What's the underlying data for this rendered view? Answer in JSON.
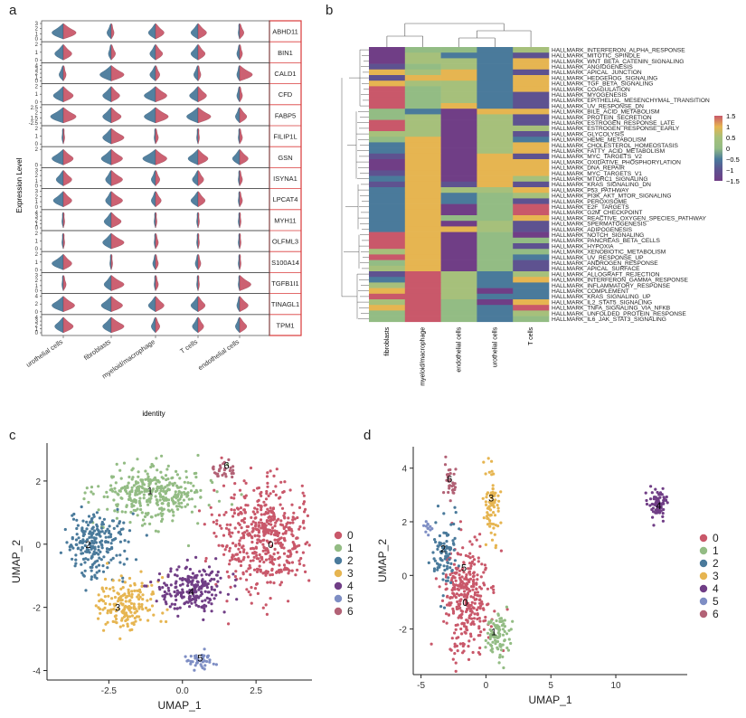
{
  "figure": {
    "panel_letters": [
      "a",
      "b",
      "c",
      "d"
    ]
  },
  "chart_data": [
    {
      "type": "violin",
      "panel": "a",
      "title": "",
      "xlabel": "identity",
      "ylabel": "Expression Level",
      "categories": [
        "urothelial cells",
        "fibroblasts",
        "myeloid/macrophage",
        "T cells",
        "endothelial cells"
      ],
      "genes": [
        {
          "name": "ABHD11",
          "ticks": [
            "3",
            "2",
            "1",
            "0"
          ],
          "blue": [
            0.8,
            0.3,
            0.5,
            0.5,
            0.1
          ],
          "red": [
            0.9,
            0.2,
            0.6,
            0.6,
            0.3
          ]
        },
        {
          "name": "BIN1",
          "ticks": [
            "2",
            "1",
            "0"
          ],
          "blue": [
            0.6,
            0.2,
            0.4,
            0.5,
            0.2
          ],
          "red": [
            0.6,
            0.3,
            0.5,
            0.5,
            0.2
          ]
        },
        {
          "name": "CALD1",
          "ticks": [
            "4",
            "3",
            "2",
            "1",
            "0"
          ],
          "blue": [
            0.3,
            0.8,
            0.4,
            0.3,
            0.2
          ],
          "red": [
            0.2,
            0.9,
            0.3,
            0.2,
            0.9
          ]
        },
        {
          "name": "CFD",
          "ticks": [
            "2",
            "1",
            "0"
          ],
          "blue": [
            0.7,
            0.6,
            0.8,
            0.6,
            0.2
          ],
          "red": [
            0.7,
            0.6,
            0.8,
            0.6,
            0.2
          ]
        },
        {
          "name": "FABP5",
          "ticks": [
            "2.5",
            "2",
            "1.5",
            "-2.5"
          ],
          "blue": [
            0.9,
            0.6,
            0.8,
            0.8,
            0.3
          ],
          "red": [
            0.9,
            0.7,
            0.9,
            0.9,
            0.5
          ]
        },
        {
          "name": "FILIP1L",
          "ticks": [
            "2",
            "1",
            "0"
          ],
          "blue": [
            0.1,
            0.6,
            0.1,
            0.1,
            0.1
          ],
          "red": [
            0.1,
            0.9,
            0.2,
            0.1,
            0.2
          ]
        },
        {
          "name": "GSN",
          "ticks": [
            "2",
            "0"
          ],
          "blue": [
            0.8,
            0.7,
            0.9,
            0.7,
            0.5
          ],
          "red": [
            0.7,
            0.8,
            0.8,
            0.7,
            0.6
          ]
        },
        {
          "name": "ISYNA1",
          "ticks": [
            "3",
            "2",
            "1",
            "0"
          ],
          "blue": [
            0.5,
            0.4,
            0.3,
            0.4,
            0.1
          ],
          "red": [
            0.6,
            0.8,
            0.3,
            0.4,
            0.2
          ]
        },
        {
          "name": "LPCAT4",
          "ticks": [
            "3",
            "2",
            "1",
            "0"
          ],
          "blue": [
            0.7,
            0.4,
            0.3,
            0.5,
            0.1
          ],
          "red": [
            0.6,
            0.8,
            0.4,
            0.5,
            0.2
          ]
        },
        {
          "name": "MYH11",
          "ticks": [
            "4",
            "3",
            "2",
            "1",
            "0"
          ],
          "blue": [
            0.1,
            0.5,
            0.1,
            0.1,
            0.1
          ],
          "red": [
            0.1,
            0.7,
            0.1,
            0.1,
            0.1
          ]
        },
        {
          "name": "OLFML3",
          "ticks": [
            "2",
            "1",
            "0"
          ],
          "blue": [
            0.1,
            0.6,
            0.1,
            0.1,
            0.1
          ],
          "red": [
            0.1,
            0.9,
            0.2,
            0.1,
            0.1
          ]
        },
        {
          "name": "S100A14",
          "ticks": [
            "2",
            "1",
            "0"
          ],
          "blue": [
            0.8,
            0.1,
            0.2,
            0.2,
            0.1
          ],
          "red": [
            0.6,
            0.1,
            0.2,
            0.2,
            0.1
          ]
        },
        {
          "name": "TGFB1I1",
          "ticks": [
            "3",
            "2",
            "1",
            "0"
          ],
          "blue": [
            0.1,
            0.5,
            0.1,
            0.1,
            0.1
          ],
          "red": [
            0.2,
            0.9,
            0.2,
            0.1,
            0.8
          ]
        },
        {
          "name": "TINAGL1",
          "ticks": [
            "4",
            "2",
            "0"
          ],
          "blue": [
            0.8,
            0.7,
            0.5,
            0.5,
            0.2
          ],
          "red": [
            0.8,
            0.8,
            0.6,
            0.5,
            0.6
          ]
        },
        {
          "name": "TPM1",
          "ticks": [
            "4",
            "3",
            "2",
            "1",
            "0"
          ],
          "blue": [
            0.6,
            0.6,
            0.3,
            0.4,
            0.3
          ],
          "red": [
            0.7,
            0.9,
            0.3,
            0.4,
            0.5
          ]
        }
      ],
      "series_colors": {
        "blue": "#4A7A9B",
        "red": "#C9586A"
      }
    },
    {
      "type": "heatmap",
      "panel": "b",
      "columns": [
        "fibroblasts",
        "myeloid/macrophage",
        "endothelial cells",
        "urothelial cells",
        "T cells"
      ],
      "rows": [
        "HALLMARK_INTERFERON_ALPHA_RESPONSE",
        "HALLMARK_MITOTIC_SPINDLE",
        "HALLMARK_WNT_BETA_CATENIN_SIGNALING",
        "HALLMARK_ANGIOGENESIS",
        "HALLMARK_APICAL_JUNCTION",
        "HALLMARK_HEDGEHOG_SIGNALING",
        "HALLMARK_TGF_BETA_SIGNALING",
        "HALLMARK_COAGULATION",
        "HALLMARK_MYOGENESIS",
        "HALLMARK_EPITHELIAL_MESENCHYMAL_TRANSITION",
        "HALLMARK_UV_RESPONSE_DN",
        "HALLMARK_BILE_ACID_METABOLISM",
        "HALLMARK_PROTEIN_SECRETION",
        "HALLMARK_ESTROGEN_RESPONSE_LATE",
        "HALLMARK_ESTROGEN_RESPONSE_EARLY",
        "HALLMARK_GLYCOLYSIS",
        "HALLMARK_HEME_METABOLISM",
        "HALLMARK_CHOLESTEROL_HOMEOSTASIS",
        "HALLMARK_FATTY_ACID_METABOLISM",
        "HALLMARK_MYC_TARGETS_V2",
        "HALLMARK_OXIDATIVE_PHOSPHORYLATION",
        "HALLMARK_DNA_REPAIR",
        "HALLMARK_MYC_TARGETS_V1",
        "HALLMARK_MTORC1_SIGNALING",
        "HALLMARK_KRAS_SIGNALING_DN",
        "HALLMARK_P53_PATHWAY",
        "HALLMARK_PI3K_AKT_MTOR_SIGNALING",
        "HALLMARK_PEROXISOME",
        "HALLMARK_E2F_TARGETS",
        "HALLMARK_G2M_CHECKPOINT",
        "HALLMARK_REACTIVE_OXYGEN_SPECIES_PATHWAY",
        "HALLMARK_SPERMATOGENESIS",
        "HALLMARK_ADIPOGENESIS",
        "HALLMARK_NOTCH_SIGNALING",
        "HALLMARK_PANCREAS_BETA_CELLS",
        "HALLMARK_HYPOXIA",
        "HALLMARK_XENOBIOTIC_METABOLISM",
        "HALLMARK_UV_RESPONSE_UP",
        "HALLMARK_ANDROGEN_RESPONSE",
        "HALLMARK_APICAL_SURFACE",
        "HALLMARK_ALLOGRAFT_REJECTION",
        "HALLMARK_INTERFERON_GAMMA_RESPONSE",
        "HALLMARK_INFLAMMATORY_RESPONSE",
        "HALLMARK_COMPLEMENT",
        "HALLMARK_KRAS_SIGNALING_UP",
        "HALLMARK_IL2_STAT5_SIGNALING",
        "HALLMARK_TNFA_SIGNALING_VIA_NFKB",
        "HALLMARK_UNFOLDED_PROTEIN_RESPONSE",
        "HALLMARK_IL6_JAK_STAT3_SIGNALING"
      ],
      "values": [
        [
          -1.5,
          0,
          0,
          -0.5,
          0.5
        ],
        [
          -1.5,
          0.5,
          -0.5,
          -0.5,
          -1
        ],
        [
          -1.5,
          0.5,
          0.5,
          -0.5,
          1
        ],
        [
          -1,
          0,
          0.5,
          -0.5,
          1
        ],
        [
          1,
          0.5,
          1,
          -0.5,
          -1
        ],
        [
          -1,
          1,
          1,
          -0.5,
          1
        ],
        [
          1,
          0.5,
          0.5,
          -0.5,
          1
        ],
        [
          1.5,
          0,
          0.5,
          -0.5,
          1
        ],
        [
          1.5,
          0,
          0.5,
          -0.5,
          -1
        ],
        [
          1.5,
          0,
          0.5,
          -0.5,
          -1
        ],
        [
          1.5,
          0,
          1,
          -0.5,
          -1
        ],
        [
          0,
          -0.5,
          -1.5,
          1,
          1
        ],
        [
          0,
          0.5,
          -1.5,
          0.5,
          -1
        ],
        [
          1.5,
          0.5,
          -1.5,
          0.5,
          -1
        ],
        [
          1.5,
          0.5,
          -1.5,
          0.5,
          0.5
        ],
        [
          0.5,
          0.5,
          -1.5,
          0.5,
          -1
        ],
        [
          0,
          1,
          -1.5,
          0.5,
          -0.5
        ],
        [
          -0.5,
          1,
          -1.5,
          0.5,
          1
        ],
        [
          -0.5,
          1,
          -1.5,
          0.5,
          1
        ],
        [
          -1,
          1,
          -1.5,
          1,
          -1
        ],
        [
          -1.5,
          1,
          -1.5,
          1,
          1
        ],
        [
          -1.5,
          1,
          -1.5,
          1,
          1
        ],
        [
          -1,
          1,
          -1.5,
          1,
          1
        ],
        [
          -0.5,
          1,
          -1.5,
          1,
          0.5
        ],
        [
          -1,
          1,
          -1,
          1,
          -1
        ],
        [
          -0.5,
          1,
          0.5,
          0.5,
          1
        ],
        [
          -0.5,
          1,
          -0.5,
          0,
          0.5
        ],
        [
          -0.5,
          1,
          -0.5,
          0,
          -1
        ],
        [
          -0.5,
          1,
          -1.5,
          0,
          1.5
        ],
        [
          -0.5,
          1,
          -1.5,
          0,
          1.5
        ],
        [
          -0.5,
          1,
          0,
          0,
          1
        ],
        [
          -0.5,
          1,
          -1.5,
          0.5,
          -1
        ],
        [
          -0.5,
          1,
          1,
          0.5,
          -1
        ],
        [
          1.5,
          1,
          -1.5,
          0,
          -1.5
        ],
        [
          1.5,
          1,
          -1.5,
          0,
          0
        ],
        [
          1.5,
          1,
          -1.5,
          0,
          -1
        ],
        [
          0.5,
          1,
          -1.5,
          0,
          0
        ],
        [
          1.5,
          1,
          -1.5,
          0,
          -0.5
        ],
        [
          0,
          1,
          -1.5,
          0,
          -1
        ],
        [
          0.5,
          1,
          -1.5,
          0,
          -1
        ],
        [
          -1,
          1.5,
          0.5,
          -0.5,
          0.5
        ],
        [
          -0.5,
          1.5,
          0.5,
          -0.5,
          1
        ],
        [
          0.5,
          1.5,
          0.5,
          -0.5,
          -0.5
        ],
        [
          1,
          1.5,
          0.5,
          -1.5,
          -0.5
        ],
        [
          1.5,
          1.5,
          0.5,
          -0.5,
          -0.5
        ],
        [
          0.5,
          1.5,
          0,
          -1.5,
          1
        ],
        [
          1,
          1.5,
          0,
          -0.5,
          1.5
        ],
        [
          0,
          1.5,
          0,
          -0.5,
          0.5
        ],
        [
          0,
          1.5,
          0,
          -0.5,
          0
        ]
      ],
      "colorbar": {
        "ticks": [
          "1.5",
          "1",
          "0.5",
          "0",
          "−0.5",
          "−1",
          "−1.5"
        ],
        "tick_values": [
          1.5,
          1,
          0.5,
          0,
          -0.5,
          -1,
          -1.5
        ],
        "colors": [
          "#C9586A",
          "#E6B551",
          "#93BC84",
          "#4A7A9B",
          "#703E86"
        ]
      }
    },
    {
      "type": "scatter",
      "panel": "c",
      "xlabel": "UMAP_1",
      "ylabel": "UMAP_2",
      "xticks": [
        -2.5,
        0.0,
        2.5
      ],
      "xtick_labels": [
        "-2.5",
        "0.0",
        "2.5"
      ],
      "yticks": [
        2,
        0,
        -2,
        -4
      ],
      "ytick_labels": [
        "2",
        "0",
        "-2",
        "-4"
      ],
      "xlim": [
        -4.6,
        4.4
      ],
      "ylim": [
        -4.3,
        3.2
      ],
      "clusters": [
        {
          "name": "0",
          "color": "#C9586A",
          "center": [
            2.8,
            0.2
          ],
          "spread": [
            1.1,
            1.1
          ],
          "n": 520
        },
        {
          "name": "1",
          "color": "#93BC84",
          "center": [
            -1.0,
            1.6
          ],
          "spread": [
            1.2,
            0.6
          ],
          "n": 340
        },
        {
          "name": "2",
          "color": "#4A7A9B",
          "center": [
            -3.0,
            0.0
          ],
          "spread": [
            0.7,
            0.65
          ],
          "n": 230
        },
        {
          "name": "3",
          "color": "#E6B551",
          "center": [
            -1.9,
            -1.9
          ],
          "spread": [
            0.65,
            0.55
          ],
          "n": 180
        },
        {
          "name": "4",
          "color": "#703E86",
          "center": [
            0.3,
            -1.4
          ],
          "spread": [
            0.8,
            0.5
          ],
          "n": 220
        },
        {
          "name": "5",
          "color": "#7E8EC4",
          "center": [
            0.6,
            -3.7
          ],
          "spread": [
            0.25,
            0.22
          ],
          "n": 40
        },
        {
          "name": "6",
          "color": "#B26276",
          "center": [
            1.4,
            2.4
          ],
          "spread": [
            0.35,
            0.25
          ],
          "n": 30
        }
      ],
      "labels_at": [
        [
          3.0,
          0.0
        ],
        [
          -1.1,
          1.7
        ],
        [
          -3.2,
          0.0
        ],
        [
          -2.2,
          -2.0
        ],
        [
          0.3,
          -1.5
        ],
        [
          0.6,
          -3.6
        ],
        [
          1.5,
          2.5
        ]
      ]
    },
    {
      "type": "scatter",
      "panel": "d",
      "xlabel": "UMAP_1",
      "ylabel": "UMAP_2",
      "xticks": [
        -5,
        0,
        5,
        10
      ],
      "xtick_labels": [
        "-5",
        "0",
        "5",
        "10"
      ],
      "yticks": [
        4,
        2,
        0,
        -2
      ],
      "ytick_labels": [
        "4",
        "2",
        "0",
        "-2"
      ],
      "xlim": [
        -5.6,
        15.5
      ],
      "ylim": [
        -3.7,
        4.8
      ],
      "clusters": [
        {
          "name": "0",
          "color": "#C9586A",
          "center": [
            -1.5,
            -0.9
          ],
          "spread": [
            1.2,
            1.3
          ],
          "n": 330
        },
        {
          "name": "1",
          "color": "#93BC84",
          "center": [
            0.9,
            -2.2
          ],
          "spread": [
            0.6,
            0.6
          ],
          "n": 90
        },
        {
          "name": "2",
          "color": "#4A7A9B",
          "center": [
            -3.2,
            0.8
          ],
          "spread": [
            0.6,
            0.9
          ],
          "n": 90
        },
        {
          "name": "3",
          "color": "#E6B551",
          "center": [
            0.4,
            2.6
          ],
          "spread": [
            0.4,
            1.0
          ],
          "n": 80
        },
        {
          "name": "4",
          "color": "#703E86",
          "center": [
            13.2,
            2.7
          ],
          "spread": [
            0.45,
            0.35
          ],
          "n": 80
        },
        {
          "name": "5",
          "color": "#7E8EC4",
          "center": [
            -4.4,
            1.8
          ],
          "spread": [
            0.25,
            0.2
          ],
          "n": 12
        },
        {
          "name": "6",
          "color": "#B26276",
          "center": [
            -2.7,
            3.5
          ],
          "spread": [
            0.3,
            0.5
          ],
          "n": 30
        }
      ],
      "labels_at": [
        [
          -1.6,
          -1.0
        ],
        [
          0.6,
          -2.1
        ],
        [
          -3.3,
          1.0
        ],
        [
          0.4,
          2.9
        ],
        [
          13.3,
          2.6
        ],
        [
          -1.7,
          0.3
        ],
        [
          -2.8,
          3.6
        ]
      ]
    }
  ]
}
